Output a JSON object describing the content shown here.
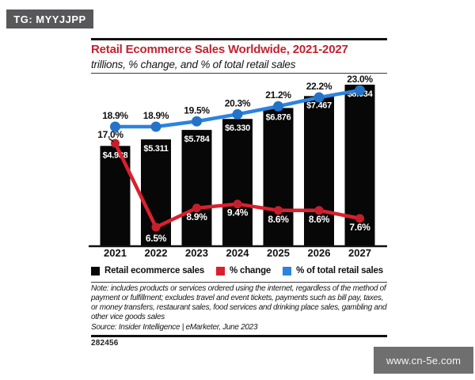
{
  "badge": {
    "text": "TG: MYYJJPP"
  },
  "watermark": {
    "text": "www.cn-5e.com"
  },
  "chart": {
    "title": "Retail Ecommerce Sales Worldwide, 2021-2027",
    "subtitle": "trillions, % change, and % of total retail sales",
    "note": "Note: includes products or services ordered using the internet, regardless of the method of payment or fulfillment; excludes travel and event tickets, payments such as bill pay, taxes, or money transfers, restaurant sales, food services and drinking place sales, gambling and other vice goods sales",
    "source": "Source: Insider Intelligence | eMarketer, June 2023",
    "figure_id": "282456"
  },
  "chart_data": {
    "type": "bar",
    "subtype": "bar-with-two-lines",
    "categories": [
      "2021",
      "2022",
      "2023",
      "2024",
      "2025",
      "2026",
      "2027"
    ],
    "series": [
      {
        "name": "Retail ecommerce sales",
        "type": "bar",
        "unit": "$ trillions",
        "color": "#070707",
        "values": [
          4.988,
          5.311,
          5.784,
          6.33,
          6.876,
          7.467,
          8.034
        ],
        "labels": [
          "$4.988",
          "$5.311",
          "$5.784",
          "$6.330",
          "$6.876",
          "$7.467",
          "$8.034"
        ]
      },
      {
        "name": "% change",
        "type": "line",
        "unit": "%",
        "color": "#da202e",
        "dot_color": "#c51f2c",
        "values": [
          17.0,
          6.5,
          8.9,
          9.4,
          8.6,
          8.6,
          7.6
        ],
        "labels": [
          "17.0%",
          "6.5%",
          "8.9%",
          "9.4%",
          "8.6%",
          "8.6%",
          "7.6%"
        ]
      },
      {
        "name": "% of total retail sales",
        "type": "line",
        "unit": "%",
        "color": "#2b84de",
        "dot_color": "#2373c8",
        "values": [
          18.9,
          18.9,
          19.5,
          20.3,
          21.2,
          22.2,
          23.0
        ],
        "labels": [
          "18.9%",
          "18.9%",
          "19.5%",
          "20.3%",
          "21.2%",
          "22.2%",
          "23.0%"
        ]
      }
    ],
    "xlabel": "",
    "ylabel": "",
    "grid": false,
    "legend_position": "bottom",
    "title_color": "#c0232f",
    "accent_colors": {
      "bar": "#070707",
      "pct_change": "#da202e",
      "share": "#2b84de"
    }
  }
}
